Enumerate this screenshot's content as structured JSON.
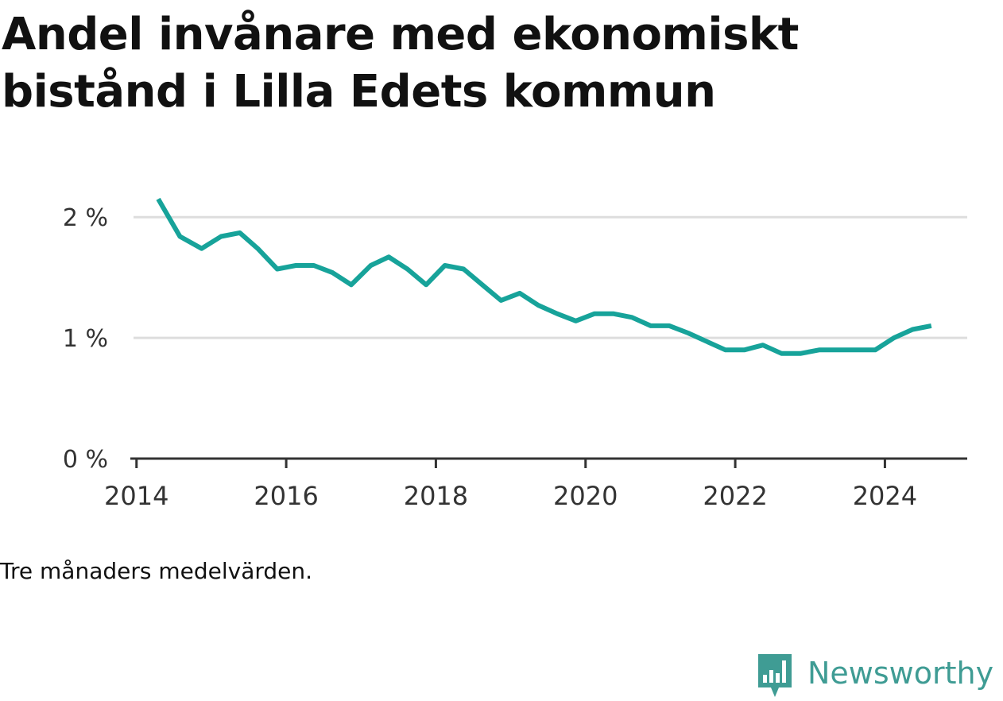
{
  "title": "Andel invånare med ekonomiskt bistånd i Lilla Edets kommun",
  "note": "Tre månaders medelvärden.",
  "brand": {
    "name": "Newsworthy",
    "icon": "newsworthy-logo-icon",
    "color": "#3f9c94"
  },
  "colors": {
    "line": "#17a39a",
    "grid": "#dddddd",
    "axis": "#333333",
    "tick_text": "#333333"
  },
  "chart_data": {
    "type": "line",
    "title": "Andel invånare med ekonomiskt bistånd i Lilla Edets kommun",
    "xlabel": "",
    "ylabel": "",
    "x_ticks": [
      "2014",
      "2016",
      "2018",
      "2020",
      "2022",
      "2024"
    ],
    "y_ticks": [
      "0 %",
      "1 %",
      "2 %"
    ],
    "ylim": [
      0,
      2.1
    ],
    "xlim": [
      2013.96,
      2025.1
    ],
    "grid": true,
    "series": [
      {
        "x": [
          2014.29,
          2014.58,
          2014.87,
          2015.13,
          2015.38,
          2015.62,
          2015.88,
          2016.13,
          2016.37,
          2016.62,
          2016.87,
          2017.13,
          2017.37,
          2017.62,
          2017.87,
          2018.12,
          2018.37,
          2018.62,
          2018.87,
          2019.12,
          2019.37,
          2019.62,
          2019.87,
          2020.12,
          2020.37,
          2020.62,
          2020.87,
          2021.12,
          2021.37,
          2021.62,
          2021.87,
          2022.12,
          2022.37,
          2022.62,
          2022.87,
          2023.12,
          2023.37,
          2023.62,
          2023.87,
          2024.12,
          2024.37,
          2024.62
        ],
        "values": [
          2.15,
          1.84,
          1.74,
          1.84,
          1.87,
          1.74,
          1.57,
          1.6,
          1.6,
          1.54,
          1.44,
          1.6,
          1.67,
          1.57,
          1.44,
          1.6,
          1.57,
          1.44,
          1.31,
          1.37,
          1.27,
          1.2,
          1.14,
          1.2,
          1.2,
          1.17,
          1.1,
          1.1,
          1.04,
          0.97,
          0.9,
          0.9,
          0.94,
          0.87,
          0.87,
          0.9,
          0.9,
          0.9,
          0.9,
          1.0,
          1.07,
          1.1
        ]
      }
    ]
  }
}
